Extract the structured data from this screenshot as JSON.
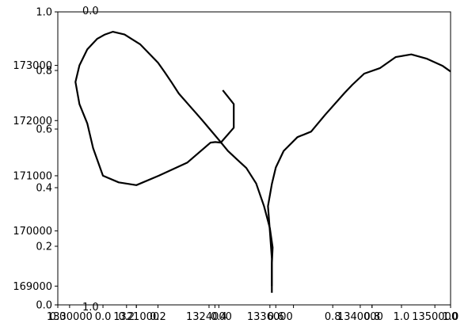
{
  "chart_data": {
    "type": "line",
    "title": "",
    "xlabel": "",
    "ylabel": "",
    "grid": false,
    "legend": "none",
    "line_color": "#000000",
    "frame_ticks": [
      "0.0",
      "0.2",
      "0.4",
      "0.6",
      "0.8",
      "1.0"
    ],
    "top_left_label": "0.0",
    "bottom_left_label": "1.0",
    "y_ticks": [
      {
        "value": 169000,
        "label": "169000"
      },
      {
        "value": 170000,
        "label": "170000"
      },
      {
        "value": 171000,
        "label": "171000"
      },
      {
        "value": 172000,
        "label": "172000"
      },
      {
        "value": 173000,
        "label": "173000"
      }
    ],
    "x_tick_labels": [
      {
        "value": 0.0,
        "label": "0.0"
      },
      {
        "value": 0.03,
        "label": "1330000"
      },
      {
        "value": 0.115,
        "label": "0.0"
      },
      {
        "value": 0.175,
        "label": "0.2"
      },
      {
        "value": 0.2,
        "label": "1321000"
      },
      {
        "value": 0.255,
        "label": "0.2"
      },
      {
        "value": 0.385,
        "label": "1324000"
      },
      {
        "value": 0.41,
        "label": "0.4"
      },
      {
        "value": 0.54,
        "label": "1336000"
      },
      {
        "value": 0.555,
        "label": "0.6"
      },
      {
        "value": 0.7,
        "label": "0.8"
      },
      {
        "value": 0.77,
        "label": "1340000"
      },
      {
        "value": 0.8,
        "label": "0.8"
      },
      {
        "value": 0.875,
        "label": "1.0"
      },
      {
        "value": 0.96,
        "label": "1350000"
      },
      {
        "value": 1.0,
        "label": "1.0"
      }
    ],
    "xlim": [
      0,
      1
    ],
    "ylim": [
      168660,
      173970
    ],
    "series": [
      {
        "values": [
          [
            0.545,
            168880
          ],
          [
            0.545,
            169400
          ],
          [
            0.547,
            169700
          ],
          [
            0.54,
            170050
          ],
          [
            0.525,
            170450
          ],
          [
            0.505,
            170860
          ],
          [
            0.48,
            171140
          ],
          [
            0.457,
            171290
          ],
          [
            0.433,
            171450
          ],
          [
            0.41,
            171650
          ],
          [
            0.385,
            171860
          ],
          [
            0.36,
            172070
          ],
          [
            0.334,
            172280
          ],
          [
            0.308,
            172490
          ],
          [
            0.29,
            172690
          ],
          [
            0.272,
            172880
          ],
          [
            0.255,
            173050
          ],
          [
            0.21,
            173380
          ],
          [
            0.19,
            173470
          ],
          [
            0.17,
            173560
          ],
          [
            0.14,
            173610
          ],
          [
            0.12,
            173560
          ],
          [
            0.1,
            173480
          ],
          [
            0.075,
            173290
          ],
          [
            0.055,
            173000
          ],
          [
            0.045,
            172700
          ],
          [
            0.055,
            172300
          ],
          [
            0.075,
            171950
          ],
          [
            0.09,
            171500
          ],
          [
            0.115,
            171000
          ],
          [
            0.155,
            170880
          ],
          [
            0.2,
            170830
          ],
          [
            0.257,
            171000
          ],
          [
            0.33,
            171240
          ],
          [
            0.389,
            171600
          ],
          [
            0.401,
            171610
          ],
          [
            0.415,
            171600
          ],
          [
            0.448,
            171870
          ],
          [
            0.448,
            172300
          ],
          [
            0.42,
            172550
          ]
        ]
      },
      {
        "values": [
          [
            0.545,
            169000
          ],
          [
            0.545,
            169500
          ],
          [
            0.54,
            170000
          ],
          [
            0.535,
            170450
          ],
          [
            0.545,
            170850
          ],
          [
            0.555,
            171150
          ],
          [
            0.575,
            171450
          ],
          [
            0.61,
            171700
          ],
          [
            0.645,
            171800
          ],
          [
            0.68,
            172100
          ],
          [
            0.73,
            172500
          ],
          [
            0.75,
            172650
          ],
          [
            0.78,
            172850
          ],
          [
            0.82,
            172950
          ],
          [
            0.86,
            173150
          ],
          [
            0.9,
            173200
          ],
          [
            0.94,
            173120
          ],
          [
            0.98,
            172990
          ],
          [
            1.0,
            172890
          ]
        ]
      }
    ]
  }
}
